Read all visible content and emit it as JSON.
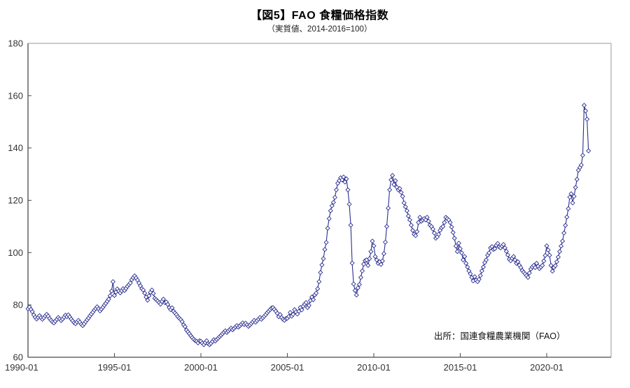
{
  "header": {
    "title": "【図5】FAO 食糧価格指数",
    "subtitle": "（実質値、2014-2016=100）"
  },
  "source_note": "出所：国連食糧農業機関（FAO）",
  "chart_data": {
    "type": "line",
    "title": "【図5】FAO 食糧価格指数",
    "subtitle": "（実質値、2014-2016=100）",
    "series_name": "FAO食糧価格指数（実質値）",
    "x_start": "1990-01",
    "x_frequency": "monthly",
    "x_tick_labels": [
      "1990-01",
      "1995-01",
      "2000-01",
      "2005-01",
      "2010-01",
      "2015-01",
      "2020-01"
    ],
    "x_tick_interval_months": 60,
    "y_ticks": [
      60,
      80,
      100,
      120,
      140,
      160,
      180
    ],
    "ylim": [
      60,
      180
    ],
    "grid": false,
    "legend": "none",
    "line_color": "#2b2f90",
    "marker": "open-diamond",
    "marker_fill": "#ffffff",
    "values": [
      78.5,
      79.2,
      78.3,
      77.4,
      76.2,
      75.3,
      74.6,
      75.2,
      75.9,
      75.1,
      74.5,
      75.1,
      75.8,
      76.4,
      75.7,
      74.8,
      74.1,
      73.5,
      73.1,
      73.8,
      74.5,
      75.2,
      74.6,
      74.0,
      74.6,
      75.3,
      76.1,
      75.5,
      76.2,
      75.4,
      74.6,
      73.9,
      73.2,
      72.8,
      73.5,
      74.1,
      73.4,
      72.6,
      72.1,
      72.8,
      73.6,
      74.3,
      75.0,
      75.8,
      76.5,
      77.2,
      78.0,
      78.6,
      79.3,
      78.5,
      77.7,
      78.4,
      79.1,
      79.9,
      80.6,
      81.4,
      82.2,
      83.5,
      85.3,
      88.9,
      83.6,
      84.9,
      86.1,
      85.3,
      84.6,
      85.4,
      86.2,
      85.5,
      86.3,
      87.1,
      87.8,
      88.4,
      89.6,
      90.4,
      91.1,
      90.3,
      89.5,
      88.4,
      87.3,
      86.2,
      85.7,
      84.5,
      83.0,
      81.8,
      83.5,
      84.8,
      85.7,
      84.4,
      82.5,
      82.0,
      81.5,
      80.9,
      80.3,
      81.3,
      82.2,
      80.9,
      81.1,
      80.2,
      79.0,
      78.2,
      78.9,
      77.6,
      76.9,
      76.3,
      75.5,
      74.9,
      74.4,
      73.6,
      72.4,
      71.7,
      70.4,
      69.7,
      69.0,
      68.2,
      67.5,
      66.9,
      66.4,
      66.1,
      65.5,
      66.3,
      66.1,
      65.4,
      64.8,
      65.6,
      66.3,
      65.2,
      64.8,
      65.3,
      66.0,
      66.7,
      66.2,
      66.8,
      67.3,
      67.9,
      68.4,
      69.0,
      69.6,
      70.1,
      69.5,
      70.0,
      70.6,
      71.1,
      70.5,
      71.0,
      71.6,
      72.1,
      71.5,
      72.0,
      72.6,
      73.1,
      72.5,
      73.0,
      72.4,
      71.8,
      72.3,
      72.9,
      73.5,
      74.1,
      73.4,
      74.0,
      74.6,
      75.2,
      74.5,
      75.1,
      75.7,
      76.3,
      77.0,
      77.6,
      78.2,
      78.8,
      79.0,
      78.3,
      77.6,
      76.8,
      75.5,
      76.3,
      75.2,
      74.5,
      74.1,
      74.8,
      74.9,
      75.6,
      77.1,
      75.7,
      76.4,
      78.2,
      77.3,
      76.5,
      77.6,
      79.0,
      78.1,
      79.5,
      80.3,
      80.9,
      79.0,
      79.8,
      81.7,
      83.0,
      82.0,
      83.8,
      84.5,
      86.2,
      88.9,
      92.4,
      95.3,
      97.7,
      101.2,
      103.9,
      109.3,
      113.0,
      116.0,
      117.9,
      119.2,
      121.1,
      124.0,
      126.5,
      127.5,
      128.6,
      127.8,
      128.9,
      127.0,
      128.2,
      124.0,
      118.5,
      110.5,
      96.0,
      88.0,
      85.5,
      83.8,
      86.5,
      87.8,
      90.5,
      93.0,
      95.6,
      96.9,
      97.2,
      95.1,
      97.7,
      100.4,
      104.4,
      102.6,
      98.5,
      97.2,
      95.9,
      96.5,
      95.5,
      96.8,
      99.6,
      104.0,
      110.0,
      117.0,
      124.0,
      127.8,
      129.5,
      126.0,
      127.5,
      125.0,
      124.0,
      124.5,
      123.0,
      121.5,
      119.0,
      117.5,
      116.0,
      114.0,
      112.5,
      110.5,
      108.5,
      107.0,
      106.5,
      108.0,
      111.5,
      113.5,
      112.0,
      112.5,
      113.0,
      112.5,
      113.5,
      112.0,
      110.5,
      110.0,
      109.0,
      107.5,
      105.5,
      106.0,
      107.0,
      108.5,
      109.5,
      110.0,
      111.5,
      113.5,
      113.0,
      112.5,
      111.5,
      109.8,
      107.7,
      105.5,
      102.5,
      100.4,
      103.6,
      101.5,
      99.9,
      97.2,
      98.5,
      95.9,
      94.5,
      93.0,
      91.9,
      90.5,
      89.2,
      90.8,
      89.5,
      88.9,
      89.8,
      91.2,
      93.0,
      94.5,
      96.2,
      97.2,
      99.0,
      99.9,
      101.8,
      102.3,
      101.2,
      101.5,
      102.8,
      103.5,
      102.2,
      101.8,
      102.5,
      103.1,
      101.8,
      100.5,
      99.1,
      97.5,
      96.9,
      97.8,
      98.5,
      97.2,
      95.9,
      96.5,
      95.2,
      94.3,
      93.2,
      92.5,
      91.9,
      91.2,
      90.5,
      92.2,
      93.7,
      94.5,
      95.1,
      94.3,
      95.9,
      94.8,
      93.9,
      94.5,
      95.1,
      96.8,
      98.9,
      102.6,
      101.0,
      99.0,
      95.1,
      92.9,
      94.3,
      95.0,
      96.5,
      98.3,
      100.4,
      102.5,
      104.4,
      107.5,
      110.4,
      113.6,
      116.8,
      121.2,
      122.5,
      119.0,
      121.5,
      124.9,
      128.0,
      131.5,
      132.5,
      133.5,
      137.2,
      156.3,
      154.2,
      151.0,
      138.9
    ]
  },
  "colors": {
    "line": "#2b2f90",
    "axis_main": "#4a4a4a",
    "axis_frame": "#9a9a9a",
    "tick_text": "#333333"
  }
}
